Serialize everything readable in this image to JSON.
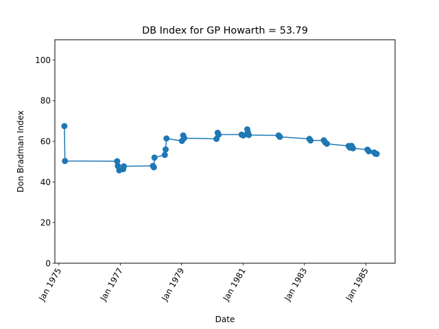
{
  "chart_data": {
    "type": "line",
    "title": "DB Index for GP Howarth = 53.79",
    "xlabel": "Date",
    "ylabel": "Don Bradman Index",
    "xlim": [
      "1974-11-15",
      "1985-12-15"
    ],
    "ylim": [
      0,
      110
    ],
    "yticks": [
      0,
      20,
      40,
      60,
      80,
      100
    ],
    "xticks": [
      {
        "date": "1975-01-01",
        "label": "Jan 1975"
      },
      {
        "date": "1977-01-01",
        "label": "Jan 1977"
      },
      {
        "date": "1979-01-01",
        "label": "Jan 1979"
      },
      {
        "date": "1981-01-01",
        "label": "Jan 1981"
      },
      {
        "date": "1983-01-01",
        "label": "Jan 1983"
      },
      {
        "date": "1985-01-01",
        "label": "Jan 1985"
      }
    ],
    "grid": false,
    "legend": "none",
    "color": "#1f77b4",
    "series": [
      {
        "points": [
          {
            "x": "1975-03-08",
            "y": 67.5
          },
          {
            "x": "1975-03-15",
            "y": 50.3
          },
          {
            "x": "1976-11-25",
            "y": 50.2
          },
          {
            "x": "1976-12-03",
            "y": 47.9
          },
          {
            "x": "1976-12-20",
            "y": 45.7
          },
          {
            "x": "1977-02-05",
            "y": 46.3
          },
          {
            "x": "1977-02-12",
            "y": 47.7
          },
          {
            "x": "1978-01-25",
            "y": 47.9
          },
          {
            "x": "1978-02-05",
            "y": 47.2
          },
          {
            "x": "1978-02-12",
            "y": 52.0
          },
          {
            "x": "1978-06-15",
            "y": 53.3
          },
          {
            "x": "1978-06-25",
            "y": 56.0
          },
          {
            "x": "1978-07-05",
            "y": 61.4
          },
          {
            "x": "1979-01-05",
            "y": 60.2
          },
          {
            "x": "1979-01-20",
            "y": 62.9
          },
          {
            "x": "1979-02-01",
            "y": 61.6
          },
          {
            "x": "1980-02-20",
            "y": 61.2
          },
          {
            "x": "1980-03-05",
            "y": 64.2
          },
          {
            "x": "1980-03-15",
            "y": 63.3
          },
          {
            "x": "1980-12-15",
            "y": 63.3
          },
          {
            "x": "1981-01-05",
            "y": 62.9
          },
          {
            "x": "1981-02-20",
            "y": 65.9
          },
          {
            "x": "1981-03-01",
            "y": 64.3
          },
          {
            "x": "1981-03-10",
            "y": 63.1
          },
          {
            "x": "1982-03-01",
            "y": 62.9
          },
          {
            "x": "1982-03-15",
            "y": 62.2
          },
          {
            "x": "1983-03-01",
            "y": 61.2
          },
          {
            "x": "1983-03-15",
            "y": 60.4
          },
          {
            "x": "1983-08-20",
            "y": 60.5
          },
          {
            "x": "1983-09-05",
            "y": 59.5
          },
          {
            "x": "1983-09-25",
            "y": 58.8
          },
          {
            "x": "1984-06-10",
            "y": 57.7
          },
          {
            "x": "1984-06-25",
            "y": 56.9
          },
          {
            "x": "1984-07-15",
            "y": 57.8
          },
          {
            "x": "1984-08-01",
            "y": 56.6
          },
          {
            "x": "1985-01-20",
            "y": 55.9
          },
          {
            "x": "1985-02-05",
            "y": 55.1
          },
          {
            "x": "1985-04-10",
            "y": 54.5
          },
          {
            "x": "1985-04-25",
            "y": 53.9
          },
          {
            "x": "1985-05-10",
            "y": 53.8
          }
        ]
      }
    ]
  }
}
